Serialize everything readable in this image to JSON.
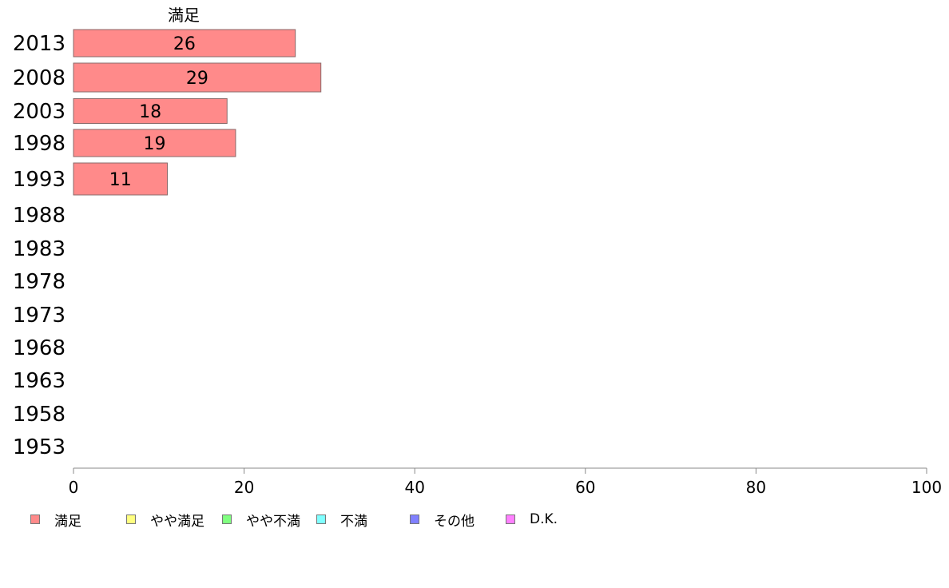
{
  "chart_data": {
    "type": "bar",
    "orientation": "horizontal",
    "title": "満足",
    "categories": [
      "2013",
      "2008",
      "2003",
      "1998",
      "1993",
      "1988",
      "1983",
      "1978",
      "1973",
      "1968",
      "1963",
      "1958",
      "1953"
    ],
    "series": [
      {
        "name": "満足",
        "color": "#ff8a8a",
        "values": [
          26,
          29,
          18,
          19,
          11,
          null,
          null,
          null,
          null,
          null,
          null,
          null,
          null
        ]
      }
    ],
    "data_labels": [
      "26",
      "29",
      "18",
      "19",
      "11"
    ],
    "xlim": [
      0,
      100
    ],
    "xticks": [
      0,
      20,
      40,
      60,
      80,
      100
    ],
    "xtick_labels": [
      "0",
      "20",
      "40",
      "60",
      "80",
      "100"
    ],
    "grid": false
  },
  "legend": [
    {
      "label": "満足",
      "color": "#ff8a8a"
    },
    {
      "label": "やや満足",
      "color": "#ffff80"
    },
    {
      "label": "やや不満",
      "color": "#80ff80"
    },
    {
      "label": "不満",
      "color": "#80ffff"
    },
    {
      "label": "その他",
      "color": "#8080ff"
    },
    {
      "label": "D.K.",
      "color": "#ff80ff"
    }
  ]
}
